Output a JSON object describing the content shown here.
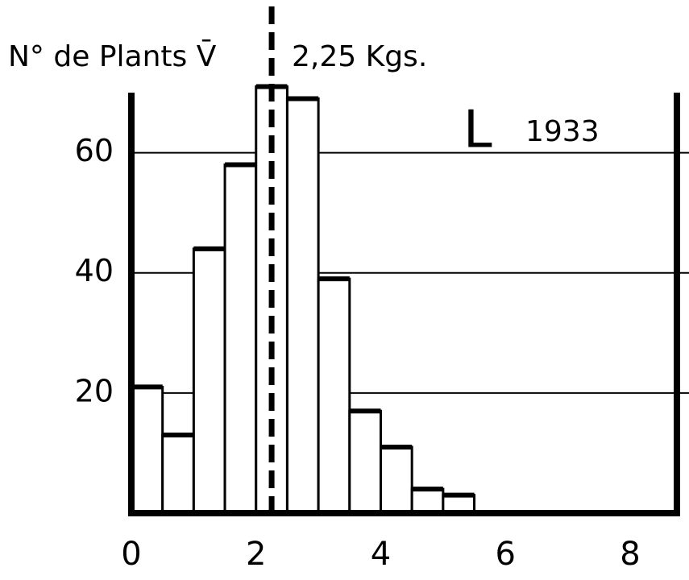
{
  "chart_data": {
    "type": "histogram",
    "ylabel": "N° de Plants V̄",
    "bins": [
      0,
      0.5,
      1,
      1.5,
      2,
      2.5,
      3,
      3.5,
      4,
      4.5,
      5,
      5.5
    ],
    "values": [
      21,
      13,
      44,
      58,
      71,
      69,
      39,
      17,
      11,
      4,
      3
    ],
    "mean": 2.25,
    "mean_label": "2,25 Kgs.",
    "annotation": "L",
    "year": "1933",
    "xlim": [
      0,
      8.75
    ],
    "xticks": [
      0,
      2,
      4,
      6,
      8
    ],
    "ylim": [
      0,
      70
    ],
    "yticks": [
      20,
      40,
      60
    ],
    "grid": true,
    "color": "#ffffff"
  }
}
